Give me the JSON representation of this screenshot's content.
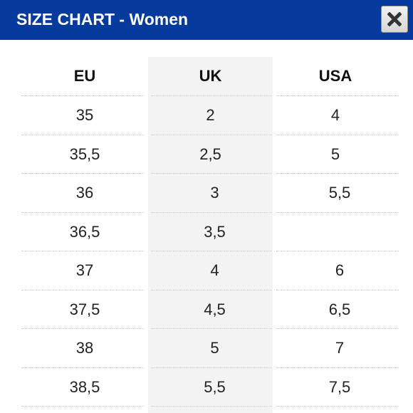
{
  "dialog": {
    "title": "SIZE CHART - Women",
    "close_icon": "close-x-icon",
    "accent_color": "#063a9c"
  },
  "table": {
    "headers": [
      "EU",
      "UK",
      "USA"
    ],
    "rows": [
      [
        "35",
        "2",
        "4"
      ],
      [
        "35,5",
        "2,5",
        "5"
      ],
      [
        "36",
        "3",
        "5,5"
      ],
      [
        "36,5",
        "3,5",
        ""
      ],
      [
        "37",
        "4",
        "6"
      ],
      [
        "37,5",
        "4,5",
        "6,5"
      ],
      [
        "38",
        "5",
        "7"
      ],
      [
        "38,5",
        "5,5",
        "7,5"
      ]
    ]
  }
}
